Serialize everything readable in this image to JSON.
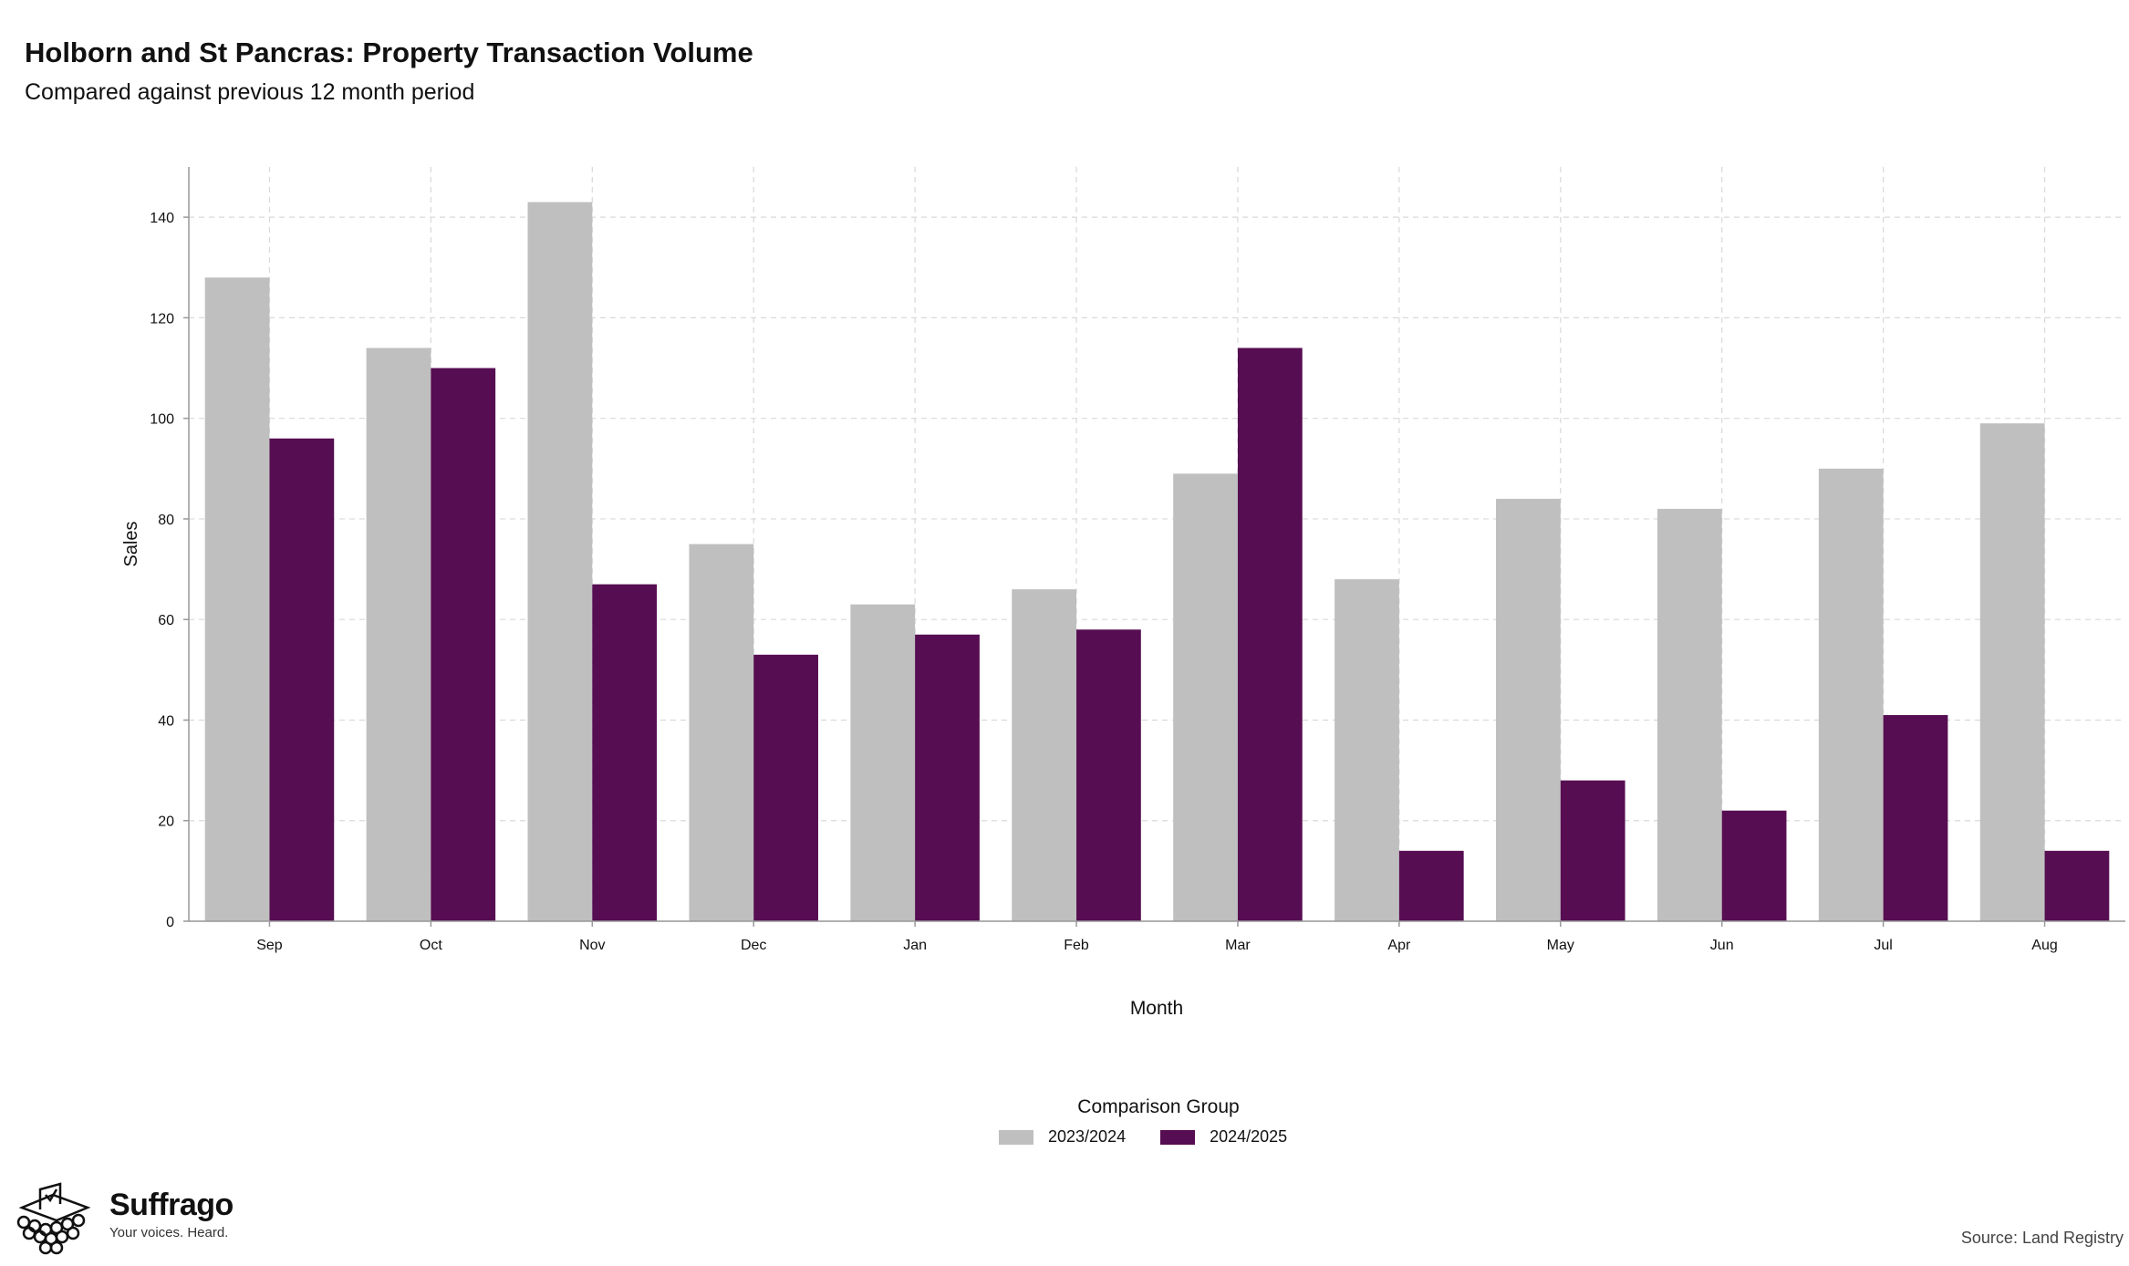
{
  "header": {
    "title": "Holborn and St Pancras: Property Transaction Volume",
    "subtitle": "Compared against previous 12 month period"
  },
  "chart_data": {
    "type": "bar",
    "categories": [
      "Sep",
      "Oct",
      "Nov",
      "Dec",
      "Jan",
      "Feb",
      "Mar",
      "Apr",
      "May",
      "Jun",
      "Jul",
      "Aug"
    ],
    "series": [
      {
        "name": "2023/2024",
        "color": "#bfbfbf",
        "values": [
          128,
          114,
          143,
          75,
          63,
          66,
          89,
          68,
          84,
          82,
          90,
          99
        ]
      },
      {
        "name": "2024/2025",
        "color": "#560d52",
        "values": [
          96,
          110,
          67,
          53,
          57,
          58,
          114,
          14,
          28,
          22,
          41,
          14
        ]
      }
    ],
    "xlabel": "Month",
    "ylabel": "Sales",
    "ylim": [
      0,
      150
    ],
    "yticks": [
      0,
      20,
      40,
      60,
      80,
      100,
      120,
      140
    ],
    "grid": true,
    "legend_title": "Comparison Group",
    "legend_position": "bottom"
  },
  "footer": {
    "brand": "Suffrago",
    "tagline": "Your voices. Heard.",
    "source": "Source: Land Registry"
  }
}
